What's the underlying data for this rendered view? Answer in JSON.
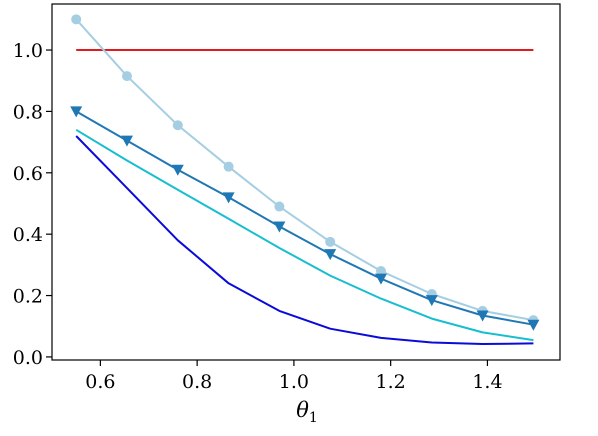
{
  "chart_data": {
    "type": "line",
    "xlabel": "θ1",
    "ylabel": "",
    "xlim": [
      0.5,
      1.55
    ],
    "ylim": [
      -0.01,
      1.15
    ],
    "xticks": [
      "0.6",
      "0.8",
      "1.0",
      "1.2",
      "1.4"
    ],
    "yticks": [
      "0.0",
      "0.2",
      "0.4",
      "0.6",
      "0.8",
      "1.0"
    ],
    "grid": false,
    "x": [
      0.55,
      0.655,
      0.76,
      0.865,
      0.97,
      1.075,
      1.18,
      1.285,
      1.39,
      1.495
    ],
    "series": [
      {
        "color": "#e31a1c",
        "marker": "none",
        "values": [
          1.0,
          1.0,
          1.0,
          1.0,
          1.0,
          1.0,
          1.0,
          1.0,
          1.0,
          1.0
        ]
      },
      {
        "color": "#a6cee3",
        "marker": "circle",
        "values": [
          1.1,
          0.915,
          0.755,
          0.62,
          0.49,
          0.375,
          0.28,
          0.205,
          0.15,
          0.12
        ]
      },
      {
        "color": "#1f78b4",
        "marker": "triangle-down",
        "values": [
          0.8,
          0.705,
          0.61,
          0.52,
          0.425,
          0.335,
          0.255,
          0.185,
          0.135,
          0.105
        ]
      },
      {
        "color": "#17becf",
        "marker": "none",
        "values": [
          0.74,
          0.64,
          0.545,
          0.45,
          0.355,
          0.265,
          0.19,
          0.125,
          0.08,
          0.055
        ]
      },
      {
        "color": "#0b0bd9",
        "marker": "none",
        "values": [
          0.72,
          0.55,
          0.38,
          0.24,
          0.15,
          0.092,
          0.062,
          0.047,
          0.042,
          0.044
        ]
      }
    ]
  }
}
